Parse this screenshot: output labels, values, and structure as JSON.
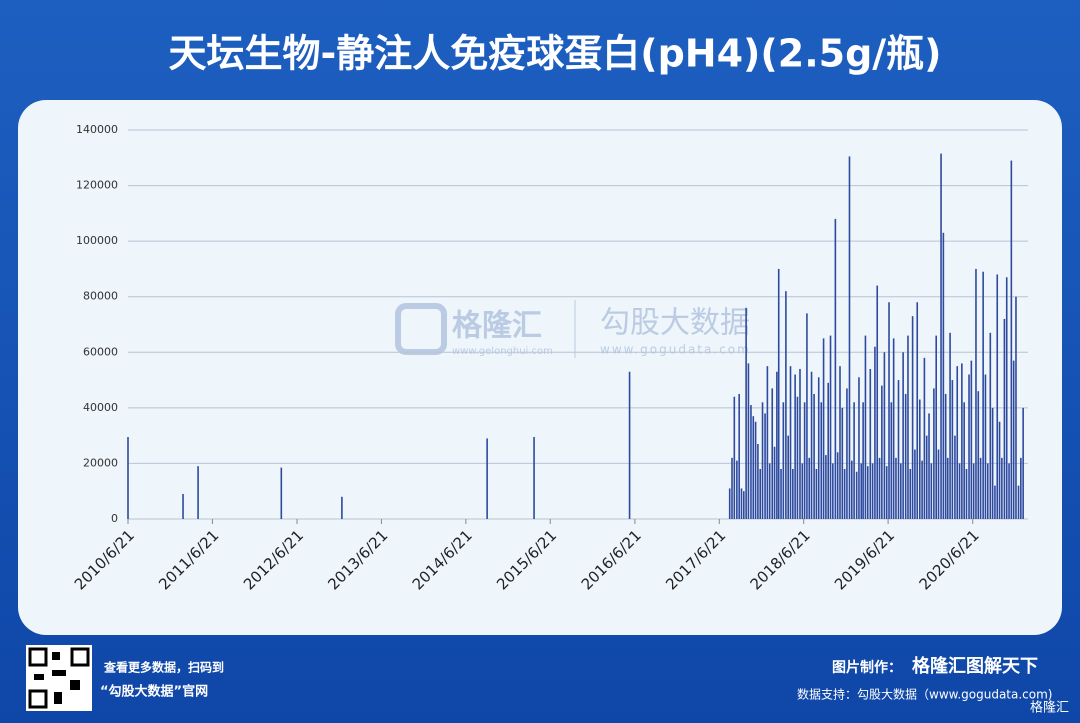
{
  "chart_data": {
    "type": "bar",
    "title": "天坛生物-静注人免疫球蛋白(pH4)(2.5g/瓶)",
    "color": "#2e4a9e",
    "x": [
      "2010/6/21",
      "2011/2/14",
      "2011/4/20",
      "2012/4/14",
      "2013/1/1",
      "2014/9/21",
      "2015/4/12",
      "2016/5/29",
      "2017/8/5",
      "2017/8/15",
      "2017/8/25",
      "2017/9/5",
      "2017/9/15",
      "2017/9/25",
      "2017/10/5",
      "2017/10/15",
      "2017/10/25",
      "2017/11/5",
      "2017/11/15",
      "2017/11/25",
      "2017/12/5",
      "2017/12/15",
      "2017/12/25",
      "2018/1/5",
      "2018/1/15",
      "2018/1/25",
      "2018/2/5",
      "2018/2/15",
      "2018/2/25",
      "2018/3/5",
      "2018/3/15",
      "2018/3/25",
      "2018/4/5",
      "2018/4/15",
      "2018/4/25",
      "2018/5/5",
      "2018/5/15",
      "2018/5/25",
      "2018/6/5",
      "2018/6/15",
      "2018/6/25",
      "2018/7/5",
      "2018/7/15",
      "2018/7/25",
      "2018/8/5",
      "2018/8/15",
      "2018/8/25",
      "2018/9/5",
      "2018/9/15",
      "2018/9/25",
      "2018/10/5",
      "2018/10/15",
      "2018/10/25",
      "2018/11/5",
      "2018/11/15",
      "2018/11/25",
      "2018/12/5",
      "2018/12/15",
      "2018/12/25",
      "2019/1/5",
      "2019/1/15",
      "2019/1/25",
      "2019/2/5",
      "2019/2/15",
      "2019/2/25",
      "2019/3/5",
      "2019/3/15",
      "2019/3/25",
      "2019/4/5",
      "2019/4/15",
      "2019/4/25",
      "2019/5/5",
      "2019/5/15",
      "2019/5/25",
      "2019/6/5",
      "2019/6/15",
      "2019/6/25",
      "2019/7/5",
      "2019/7/15",
      "2019/7/25",
      "2019/8/5",
      "2019/8/15",
      "2019/8/25",
      "2019/9/5",
      "2019/9/15",
      "2019/9/25",
      "2019/10/5",
      "2019/10/15",
      "2019/10/25",
      "2019/11/5",
      "2019/11/15",
      "2019/11/25",
      "2019/12/5",
      "2019/12/15",
      "2019/12/25",
      "2020/1/5",
      "2020/1/15",
      "2020/1/25",
      "2020/2/5",
      "2020/2/15",
      "2020/2/25",
      "2020/3/5",
      "2020/3/15",
      "2020/3/25",
      "2020/4/5",
      "2020/4/15",
      "2020/4/25",
      "2020/5/5",
      "2020/5/15",
      "2020/5/25",
      "2020/6/5",
      "2020/6/15",
      "2020/6/25",
      "2020/7/5",
      "2020/7/15",
      "2020/7/25",
      "2020/8/5",
      "2020/8/15",
      "2020/8/25",
      "2020/9/5",
      "2020/9/15",
      "2020/9/25",
      "2020/10/5",
      "2020/10/15",
      "2020/10/25",
      "2020/11/5",
      "2020/11/15",
      "2020/11/25",
      "2020/12/5",
      "2020/12/15",
      "2020/12/25",
      "2021/1/5",
      "2021/1/15",
      "2021/1/25"
    ],
    "values": [
      29500,
      9000,
      19000,
      18500,
      8000,
      29000,
      29500,
      53000,
      11000,
      22000,
      44000,
      21000,
      45000,
      11000,
      10000,
      76000,
      56000,
      41000,
      37000,
      35000,
      27000,
      18000,
      42000,
      38000,
      55000,
      20000,
      47000,
      26000,
      53000,
      90000,
      18000,
      42000,
      82000,
      30000,
      55000,
      18000,
      52000,
      44000,
      54000,
      20000,
      42000,
      74000,
      22000,
      53000,
      45000,
      18000,
      51000,
      42000,
      65000,
      23000,
      49000,
      66000,
      20000,
      108000,
      24000,
      55000,
      40000,
      18000,
      47000,
      130500,
      21000,
      42000,
      17000,
      51000,
      20000,
      42000,
      66000,
      19000,
      54000,
      20000,
      62000,
      84000,
      22000,
      48000,
      60000,
      19000,
      78000,
      42000,
      65000,
      22000,
      50000,
      20000,
      60000,
      45000,
      66000,
      18000,
      73000,
      25000,
      78000,
      43000,
      21000,
      58000,
      30000,
      38000,
      20000,
      47000,
      66000,
      25000,
      131500,
      103000,
      45000,
      22000,
      67000,
      50000,
      30000,
      55000,
      20000,
      56000,
      42000,
      18000,
      52000,
      57000,
      20000,
      90000,
      46000,
      22000,
      89000,
      52000,
      20000,
      67000,
      40000,
      12000,
      88000,
      35000,
      22000,
      72000,
      87000,
      20000,
      129000,
      57000,
      80000,
      12000,
      22000,
      40000
    ],
    "xlim": [
      "2010/6/21",
      "2021/2/15"
    ],
    "xticks": [
      "2010/6/21",
      "2011/6/21",
      "2012/6/21",
      "2013/6/21",
      "2014/6/21",
      "2015/6/21",
      "2016/6/21",
      "2017/6/21",
      "2018/6/21",
      "2019/6/21",
      "2020/6/21"
    ],
    "ylim": [
      0,
      140000
    ],
    "yticks": [
      0,
      20000,
      40000,
      60000,
      80000,
      100000,
      120000,
      140000
    ],
    "grid": true
  },
  "watermark": {
    "brand": "格隆汇",
    "brand_url": "www.gelonghui.com",
    "source": "勾股大数据",
    "source_url": "www.gogudata.com"
  },
  "footer": {
    "qr_line1": "查看更多数据，扫码到",
    "qr_line2": "“勾股大数据”官网",
    "maker_label": "图片制作：",
    "maker": "格隆汇图解天下",
    "data_support": "数据支持：勾股大数据（www.gogudata.com)",
    "corner_brand": "格隆汇"
  }
}
